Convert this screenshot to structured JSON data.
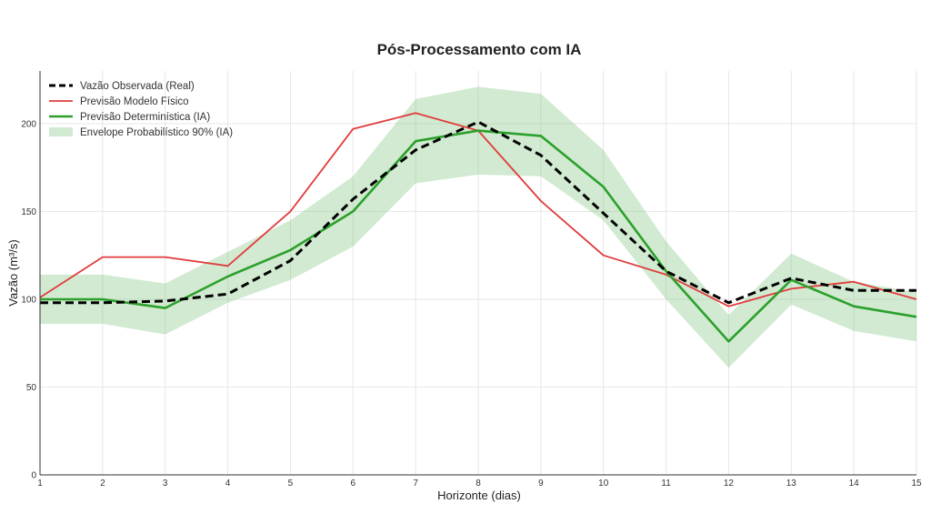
{
  "chart_data": {
    "type": "line",
    "title": "Pós-Processamento com IA",
    "xlabel": "Horizonte (dias)",
    "ylabel": "Vazão (m³/s)",
    "x": [
      1,
      2,
      3,
      4,
      5,
      6,
      7,
      8,
      9,
      10,
      11,
      12,
      13,
      14,
      15
    ],
    "xlim": [
      1,
      15
    ],
    "ylim": [
      0,
      230
    ],
    "yticks": [
      0,
      50,
      100,
      150,
      200
    ],
    "grid": true,
    "legend_position": "top-left",
    "series": [
      {
        "name": "Vazão Observada (Real)",
        "color": "#000000",
        "style": "dashed",
        "values": [
          98,
          98,
          99,
          103,
          122,
          157,
          185,
          201,
          182,
          149,
          116,
          98,
          112,
          105,
          105
        ]
      },
      {
        "name": "Previsão Modelo Físico",
        "color": "#e03c3c",
        "style": "solid",
        "values": [
          101,
          124,
          124,
          119,
          150,
          197,
          206,
          196,
          156,
          125,
          114,
          96,
          106,
          110,
          100
        ]
      },
      {
        "name": "Previsão Determinística (IA)",
        "color": "#2ca02c",
        "style": "solid",
        "values": [
          100,
          100,
          95,
          113,
          128,
          150,
          190,
          196,
          193,
          164,
          116,
          76,
          111,
          96,
          90
        ]
      }
    ],
    "band": {
      "name": "Envelope Probabilístico 90% (IA)",
      "color": "#7cc47c",
      "lower": [
        86,
        86,
        80,
        98,
        111,
        130,
        166,
        171,
        170,
        145,
        100,
        61,
        97,
        82,
        76
      ],
      "upper": [
        114,
        114,
        109,
        127,
        145,
        170,
        214,
        221,
        217,
        185,
        133,
        91,
        126,
        110,
        104
      ]
    }
  }
}
